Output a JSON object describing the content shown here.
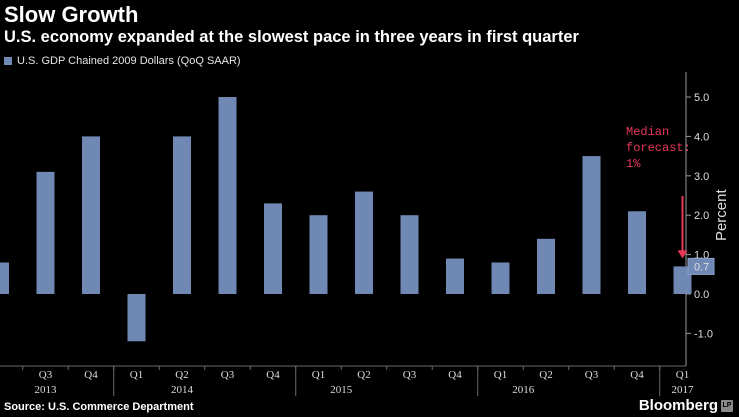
{
  "header": {
    "title": "Slow Growth",
    "subtitle": "U.S. economy expanded at the slowest pace in three years in first quarter"
  },
  "legend": {
    "label": "U.S. GDP Chained 2009 Dollars (QoQ SAAR)"
  },
  "footer": {
    "source": "Source: U.S. Commerce Department",
    "brand": "Bloomberg",
    "brand_badge": "LP"
  },
  "colors": {
    "bar": "#7089b4",
    "background": "#000000",
    "annotation": "#e8375a",
    "grid": "#3a3a3a"
  },
  "chart_data": {
    "type": "bar",
    "categories": [
      "Q2",
      "Q3",
      "Q4",
      "Q1",
      "Q2",
      "Q3",
      "Q4",
      "Q1",
      "Q2",
      "Q3",
      "Q4",
      "Q1",
      "Q2",
      "Q3",
      "Q4",
      "Q1"
    ],
    "values": [
      0.8,
      3.1,
      4.0,
      -1.2,
      4.0,
      5.0,
      2.3,
      2.0,
      2.6,
      2.0,
      0.9,
      0.8,
      1.4,
      3.5,
      2.1,
      0.7
    ],
    "tick_labels": [
      "Q3",
      "Q4",
      "Q1",
      "Q2",
      "Q3",
      "Q4",
      "Q1",
      "Q2",
      "Q3",
      "Q4",
      "Q1",
      "Q2",
      "Q3",
      "Q4",
      "Q1"
    ],
    "year_labels": [
      {
        "label": "2013",
        "under": "Q3"
      },
      {
        "label": "2014",
        "under": "Q2"
      },
      {
        "label": "2015",
        "under": "Q1/Q2"
      },
      {
        "label": "2016",
        "under": "Q1/Q2"
      },
      {
        "label": "2017",
        "under": "Q1"
      }
    ],
    "ylabel": "Percent",
    "ylim": [
      -1.5,
      5.5
    ],
    "yticks": [
      -1.0,
      0.0,
      1.0,
      2.0,
      3.0,
      4.0,
      5.0
    ],
    "ytick_labels": [
      "-1.0",
      "0.0",
      "1.0",
      "2.0",
      "3.0",
      "4.0",
      "5.0"
    ],
    "axis_side": "right",
    "grid": false,
    "last_value_label": "0.7",
    "annotation": {
      "lines": [
        "Median",
        "forecast:",
        "1%"
      ],
      "value": 1,
      "category_index": 15
    }
  }
}
